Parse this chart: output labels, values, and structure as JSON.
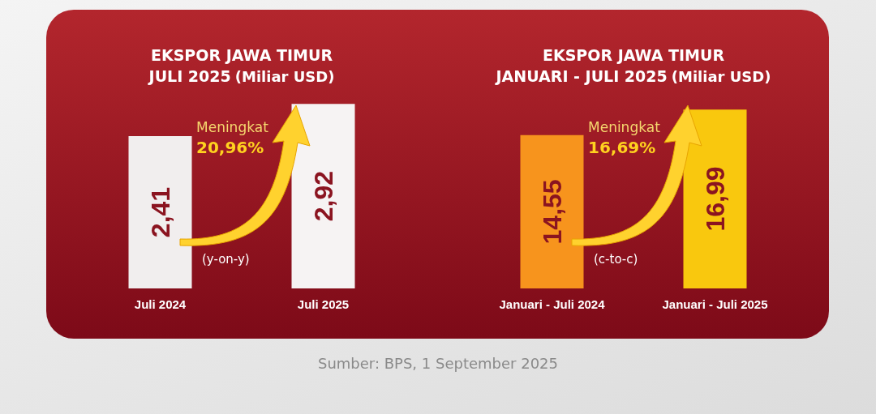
{
  "chart_data": [
    {
      "type": "bar",
      "title": "EKSPOR JAWA TIMUR\nJULI 2025",
      "subtitle": "(Miliar USD)",
      "categories": [
        "Juli 2024",
        "Juli 2025"
      ],
      "values": [
        2.41,
        2.92
      ],
      "value_labels": [
        "2,41",
        "2,92"
      ],
      "colors": [
        "#f1eeee",
        "#f6f3f3"
      ],
      "annotations": [
        "Meningkat",
        "20,96%",
        "(y-on-y)"
      ]
    },
    {
      "type": "bar",
      "title": "EKSPOR JAWA TIMUR\nJANUARI - JULI 2025",
      "subtitle": "(Miliar USD)",
      "categories": [
        "Januari - Juli 2024",
        "Januari - Juli 2025"
      ],
      "values": [
        14.55,
        16.99
      ],
      "value_labels": [
        "14,55",
        "16,99"
      ],
      "colors": [
        "#f7941d",
        "#f9c80e"
      ],
      "annotations": [
        "Meningkat",
        "16,69%",
        "(c-to-c)",
        "Sumber: BPS, 1 September 2025"
      ]
    }
  ]
}
